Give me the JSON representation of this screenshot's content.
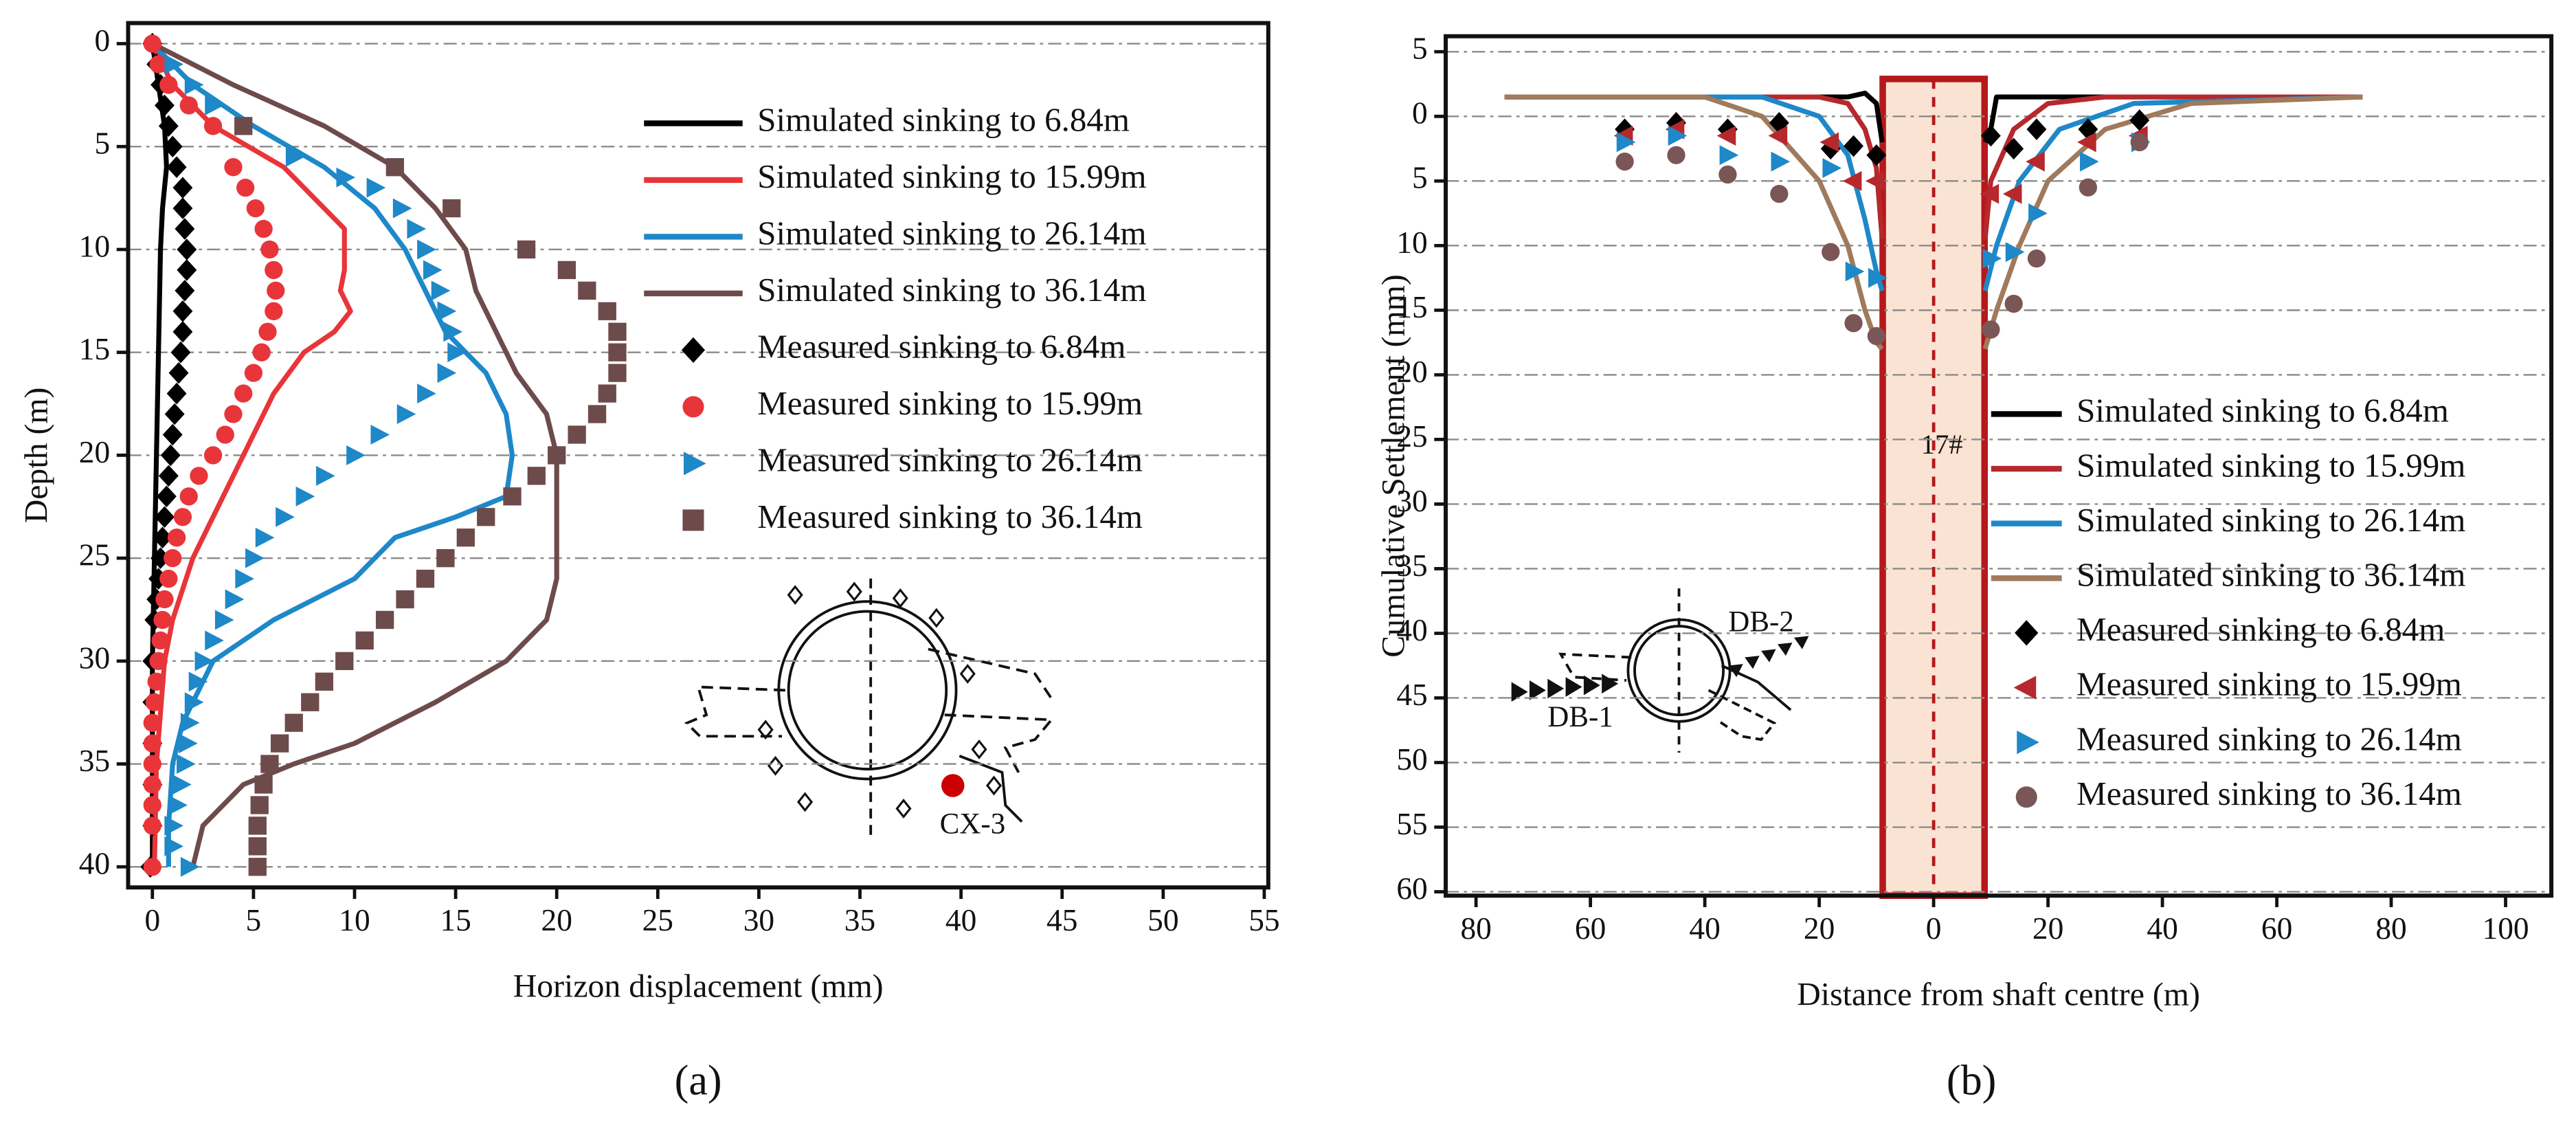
{
  "chart_data": [
    {
      "type": "line",
      "caption": "(a)",
      "xlabel": "Horizon displacement (mm)",
      "ylabel": "Depth (m)",
      "xlim": [
        -1.2,
        55.2
      ],
      "ylim": [
        -1,
        41
      ],
      "y_reversed": true,
      "xticks": [
        0,
        5,
        10,
        15,
        20,
        25,
        30,
        35,
        40,
        45,
        50,
        55
      ],
      "yticks": [
        0,
        5,
        10,
        15,
        20,
        25,
        30,
        35,
        40
      ],
      "grid": "horizontal",
      "legend": "upper right",
      "annotation": "CX-3",
      "series": [
        {
          "name": "Simulated sinking to 6.84m",
          "type": "line",
          "color": "#000000",
          "x": [
            0,
            0.3,
            0.6,
            0.7,
            0.5,
            0.4,
            0.3,
            0.2,
            0.1,
            0,
            0,
            0
          ],
          "y": [
            0,
            2,
            4,
            6,
            8,
            10,
            15,
            20,
            25,
            30,
            35,
            40
          ]
        },
        {
          "name": "Simulated sinking to 15.99m",
          "type": "line",
          "color": "#e8353a",
          "x": [
            0,
            1,
            3,
            6.5,
            8.5,
            9.5,
            9.5,
            9.3,
            9.8,
            9,
            7.5,
            6,
            5,
            4,
            3,
            2,
            1,
            0.6,
            0.2,
            0.1
          ],
          "y": [
            0,
            2,
            4,
            6,
            8,
            9,
            11,
            12,
            13,
            14,
            15,
            17,
            19,
            21,
            23,
            25,
            28,
            30,
            35,
            40
          ]
        },
        {
          "name": "Simulated sinking to 26.14m",
          "type": "line",
          "color": "#1e88c8",
          "x": [
            0,
            2,
            5,
            8.5,
            11,
            12.5,
            13.5,
            14.5,
            15.5,
            16.5,
            17.5,
            17.8,
            17.5,
            15,
            12,
            11,
            10,
            6,
            3,
            2.5,
            1.5,
            1,
            0.8,
            0.8
          ],
          "y": [
            0,
            2,
            4,
            6,
            8,
            10,
            12,
            14,
            15,
            16,
            18,
            20,
            22,
            23,
            24,
            25,
            26,
            28,
            30,
            31,
            33,
            35,
            38,
            40
          ]
        },
        {
          "name": "Simulated sinking to 36.14m",
          "type": "line",
          "color": "#6e4b4b",
          "x": [
            0,
            4,
            8.5,
            12,
            14,
            15.5,
            16,
            17,
            18,
            19.5,
            20,
            20,
            20,
            20,
            19.5,
            18.5,
            17.5,
            14,
            10,
            7,
            4.5,
            2.5,
            2
          ],
          "y": [
            0,
            2,
            4,
            6,
            8,
            10,
            12,
            14,
            16,
            18,
            20,
            22,
            24,
            26,
            28,
            29,
            30,
            32,
            34,
            35,
            36,
            38,
            40
          ]
        },
        {
          "name": "Measured sinking to 6.84m",
          "type": "scatter",
          "marker": "diamond",
          "color": "#000000",
          "x": [
            0,
            0.2,
            0.4,
            0.6,
            0.8,
            1,
            1.2,
            1.5,
            1.5,
            1.6,
            1.7,
            1.7,
            1.6,
            1.5,
            1.5,
            1.4,
            1.3,
            1.2,
            1.1,
            1,
            0.9,
            0.8,
            0.7,
            0.6,
            0.5,
            0.4,
            0.3,
            0.2,
            0.1,
            0,
            0,
            0,
            0,
            0,
            -0.1
          ],
          "y": [
            0,
            1,
            2,
            3,
            4,
            5,
            6,
            7,
            8,
            9,
            10,
            11,
            12,
            13,
            14,
            15,
            16,
            17,
            18,
            19,
            20,
            21,
            22,
            23,
            24,
            25,
            26,
            27,
            28,
            30,
            32,
            34,
            36,
            38,
            40
          ]
        },
        {
          "name": "Measured sinking to 15.99m",
          "type": "scatter",
          "marker": "circle",
          "color": "#e8353a",
          "x": [
            0,
            0.3,
            0.8,
            1.8,
            3,
            4,
            4.6,
            5.1,
            5.5,
            5.8,
            6,
            6.1,
            6,
            5.7,
            5.4,
            5,
            4.5,
            4,
            3.6,
            3,
            2.3,
            1.8,
            1.5,
            1.2,
            1,
            0.8,
            0.6,
            0.5,
            0.4,
            0.3,
            0.2,
            0.1,
            0,
            0,
            0,
            0,
            0,
            0,
            0
          ],
          "y": [
            0,
            1,
            2,
            3,
            4,
            6,
            7,
            8,
            9,
            10,
            11,
            12,
            13,
            14,
            15,
            16,
            17,
            18,
            19,
            20,
            21,
            22,
            23,
            24,
            25,
            26,
            27,
            28,
            29,
            30,
            31,
            32,
            33,
            34,
            35,
            36,
            37,
            38,
            40
          ]
        },
        {
          "name": "Measured sinking to 26.14m",
          "type": "scatter",
          "marker": "triangle-right",
          "color": "#1e88c8",
          "x": [
            1,
            2,
            3,
            4.5,
            7,
            9.5,
            11,
            12.3,
            13,
            13.5,
            13.8,
            14.2,
            14.5,
            14.8,
            15,
            14.5,
            13.5,
            12.5,
            11.2,
            10,
            8.5,
            7.5,
            6.5,
            5.5,
            5,
            4.5,
            4,
            3.5,
            3,
            2.5,
            2.2,
            2,
            1.8,
            1.7,
            1.6,
            1.4,
            1.2,
            1,
            1,
            1.8
          ],
          "y": [
            1,
            2,
            3,
            4,
            5.5,
            6.5,
            7,
            8,
            9,
            10,
            11,
            12,
            13,
            14,
            15,
            16,
            17,
            18,
            19,
            20,
            21,
            22,
            23,
            24,
            25,
            26,
            27,
            28,
            29,
            30,
            31,
            32,
            33,
            34,
            35,
            36,
            37,
            38,
            39,
            40
          ]
        },
        {
          "name": "Measured sinking to 36.14m",
          "type": "scatter",
          "marker": "square",
          "color": "#6e4b4b",
          "x": [
            4.5,
            12,
            14.8,
            18.5,
            20.5,
            21.5,
            22.5,
            23,
            23,
            23,
            22.5,
            22,
            21,
            20,
            19,
            17.8,
            16.5,
            15.5,
            14.5,
            13.5,
            12.5,
            11.5,
            10.5,
            9.5,
            8.5,
            7.8,
            7,
            6.3,
            5.8,
            5.5,
            5.3,
            5.2,
            5.2,
            5.2
          ],
          "y": [
            4,
            6,
            8,
            10,
            11,
            12,
            13,
            14,
            15,
            16,
            17,
            18,
            19,
            20,
            21,
            22,
            23,
            24,
            25,
            26,
            27,
            28,
            29,
            30,
            31,
            32,
            33,
            34,
            35,
            36,
            37,
            38,
            39,
            40
          ]
        }
      ]
    },
    {
      "type": "line",
      "caption": "(b)",
      "xlabel": "Distance from shaft centre (m)",
      "ylabel": "Cumulative Settlement (mm)",
      "xlim": [
        -85.3,
        108
      ],
      "ylim": [
        -6.2,
        60.3
      ],
      "y_reversed": true,
      "xticks": [
        {
          "value": -80,
          "label": "80"
        },
        {
          "value": -60,
          "label": "60"
        },
        {
          "value": -40,
          "label": "40"
        },
        {
          "value": -20,
          "label": "20"
        },
        0,
        20,
        40,
        60,
        80,
        100
      ],
      "yticks": [
        {
          "value": -5,
          "label": "5"
        },
        0,
        5,
        10,
        15,
        20,
        25,
        30,
        35,
        40,
        45,
        50,
        55,
        60
      ],
      "grid": "horizontal",
      "legend": "lower right",
      "annotation": "17#",
      "inset_labels": [
        "DB-1",
        "DB-2"
      ],
      "series": [
        {
          "name": "Simulated sinking to 6.84m",
          "type": "line",
          "color": "#000000",
          "x": [
            -75,
            -15,
            -12,
            -10,
            -9,
            null,
            9,
            10,
            11,
            75
          ],
          "y": [
            -1.5,
            -1.5,
            -1.8,
            -1,
            2,
            null,
            2,
            1,
            -1.5,
            -1.5
          ]
        },
        {
          "name": "Simulated sinking to 15.99m",
          "type": "line",
          "color": "#b5282c",
          "x": [
            -75,
            -20,
            -15,
            -12,
            -10,
            -9,
            null,
            9,
            10,
            14,
            20,
            30,
            75
          ],
          "y": [
            -1.5,
            -1.5,
            -1,
            1,
            4,
            9.5,
            null,
            9.5,
            5,
            1,
            -1,
            -1.5,
            -1.5
          ]
        },
        {
          "name": "Simulated sinking to 26.14m",
          "type": "line",
          "color": "#1e88c8",
          "x": [
            -75,
            -30,
            -20,
            -15,
            -12,
            -10,
            -9,
            null,
            9,
            11,
            15,
            22,
            35,
            75
          ],
          "y": [
            -1.5,
            -1.5,
            0,
            3,
            8,
            12,
            13.5,
            null,
            13.5,
            10,
            5,
            1,
            -1,
            -1.5
          ]
        },
        {
          "name": "Simulated sinking to 36.14m",
          "type": "line",
          "color": "#a07a5c",
          "x": [
            -75,
            -40,
            -30,
            -20,
            -15,
            -12,
            -10,
            -9,
            null,
            9,
            11,
            15,
            20,
            30,
            45,
            75
          ],
          "y": [
            -1.5,
            -1.5,
            0,
            5,
            10,
            15,
            17.5,
            18,
            null,
            18,
            15,
            10,
            5,
            1,
            -1,
            -1.5
          ]
        },
        {
          "name": "Measured sinking to 6.84m",
          "type": "scatter",
          "marker": "diamond",
          "color": "#000000",
          "x": [
            -54,
            -45,
            -36,
            -27,
            -18,
            -14,
            -10,
            10,
            14,
            18,
            27,
            36
          ],
          "y": [
            1,
            0.5,
            1,
            0.5,
            2.5,
            2.3,
            3,
            1.5,
            2.5,
            1,
            1,
            0.3
          ]
        },
        {
          "name": "Measured sinking to 15.99m",
          "type": "scatter",
          "marker": "triangle-left",
          "color": "#b5282c",
          "x": [
            -54,
            -45,
            -36,
            -27,
            -18,
            -14,
            -10,
            10,
            14,
            18,
            27,
            36
          ],
          "y": [
            1.5,
            1,
            1.5,
            1.5,
            2,
            5,
            5,
            6,
            6,
            3.5,
            2,
            1.5
          ]
        },
        {
          "name": "Measured sinking to 26.14m",
          "type": "scatter",
          "marker": "triangle-right",
          "color": "#1e88c8",
          "x": [
            -54,
            -45,
            -36,
            -27,
            -18,
            -14,
            -10,
            10,
            14,
            18,
            27,
            36
          ],
          "y": [
            2,
            1.5,
            3,
            3.5,
            4,
            12,
            12.5,
            11,
            10.5,
            7.5,
            3.5,
            2
          ]
        },
        {
          "name": "Measured sinking to 36.14m",
          "type": "scatter",
          "marker": "circle",
          "color": "#7a5656",
          "x": [
            -54,
            -45,
            -36,
            -27,
            -18,
            -14,
            -10,
            10,
            14,
            18,
            27,
            36
          ],
          "y": [
            3.5,
            3,
            4.5,
            6,
            10.5,
            16,
            17,
            16.5,
            14.5,
            11,
            5.5,
            2
          ]
        }
      ]
    }
  ]
}
